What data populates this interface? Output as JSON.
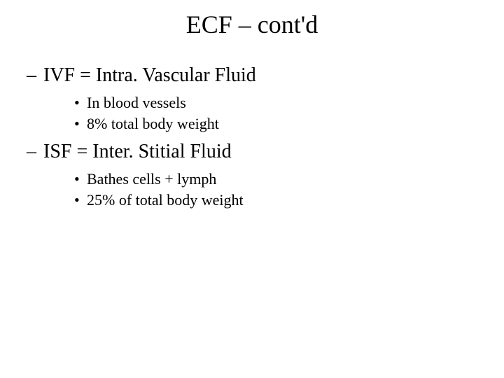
{
  "title": "ECF – cont'd",
  "sections": [
    {
      "heading": "IVF = Intra. Vascular Fluid",
      "items": [
        "In blood vessels",
        "8% total body weight"
      ]
    },
    {
      "heading": "ISF = Inter. Stitial Fluid",
      "items": [
        "Bathes cells + lymph",
        "25% of total body weight"
      ]
    }
  ],
  "style": {
    "background_color": "#ffffff",
    "text_color": "#000000",
    "font_family": "Times New Roman",
    "title_fontsize": 36,
    "level1_fontsize": 28,
    "level2_fontsize": 22,
    "dash_char": "–",
    "bullet_char": "•"
  }
}
